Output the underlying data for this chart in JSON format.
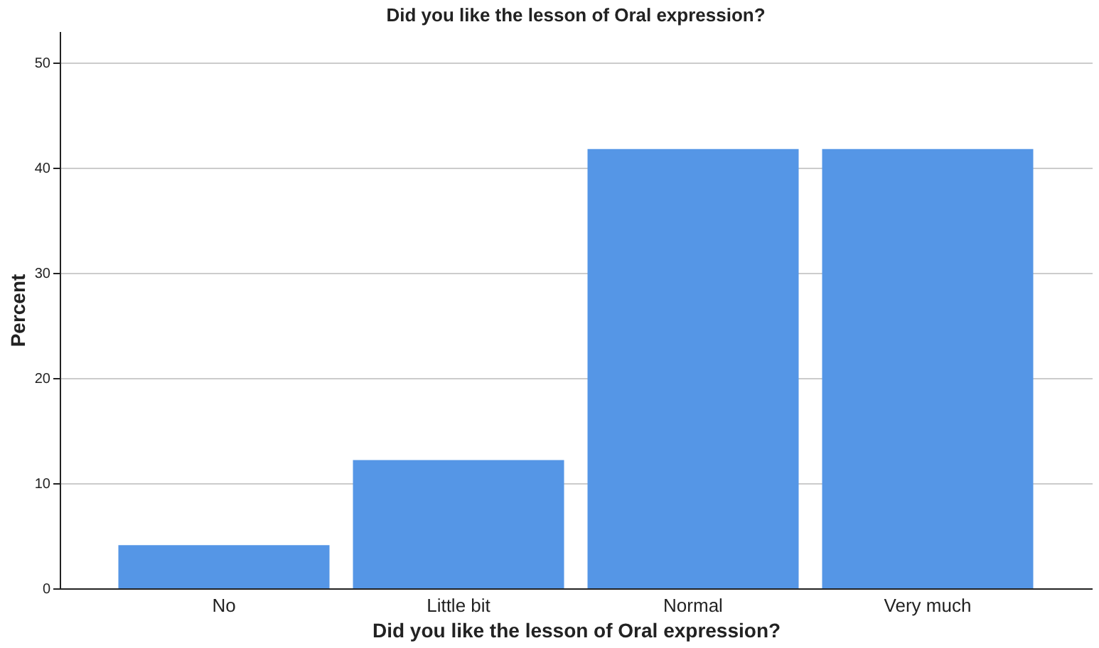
{
  "chart_data": {
    "type": "bar",
    "title": "Did you like the lesson of Oral expression?",
    "xlabel": "Did you like the lesson of Oral expression?",
    "ylabel": "Percent",
    "categories": [
      "No",
      "Little bit",
      "Normal",
      "Very much"
    ],
    "values": [
      4.1,
      12.2,
      41.8,
      41.8
    ],
    "color": "#5596e6",
    "ylim": [
      0,
      53
    ],
    "yticks": [
      0,
      10,
      20,
      30,
      40,
      50
    ],
    "grid": "y"
  }
}
